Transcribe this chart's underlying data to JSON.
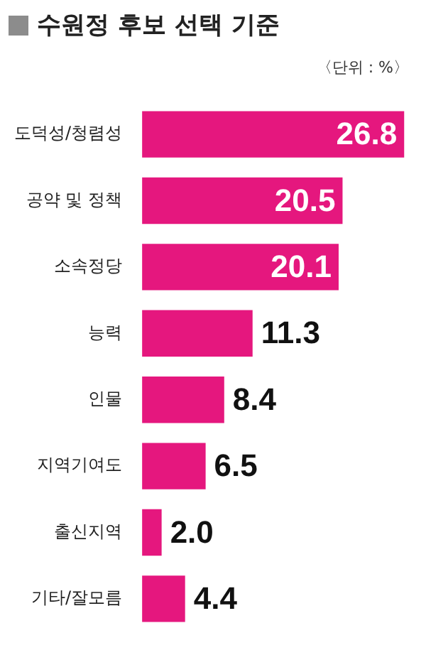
{
  "chart_data": {
    "type": "bar",
    "orientation": "horizontal",
    "title": "수원정 후보 선택 기준",
    "subtitle": "〈단위 : %〉",
    "categories": [
      "도덕성/청렴성",
      "공약 및 정책",
      "소속정당",
      "능력",
      "인물",
      "지역기여도",
      "출신지역",
      "기타/잘모름"
    ],
    "values": [
      26.8,
      20.5,
      20.1,
      11.3,
      8.4,
      6.5,
      2.0,
      4.4
    ],
    "value_labels": [
      "26.8",
      "20.5",
      "20.1",
      "11.3",
      "8.4",
      "6.5",
      "2.0",
      "4.4"
    ],
    "color": "#e5177e",
    "xlim": [
      0,
      27
    ],
    "tick_labels": "y"
  }
}
